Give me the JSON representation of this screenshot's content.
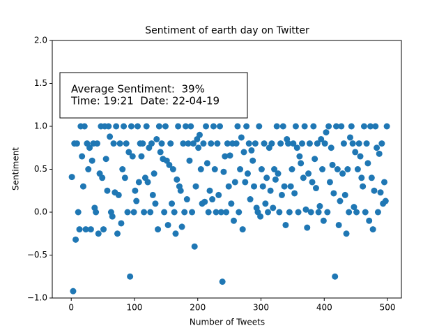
{
  "chart_data": {
    "type": "scatter",
    "title": "Sentiment of earth day on Twitter",
    "x_label": "Number of Tweets",
    "y_label": "Sentiment",
    "annotations": [
      "Average Sentiment:  39%",
      "Time: 19:21  Date: 22-04-19"
    ],
    "color": "#1f77b4",
    "xlim": [
      -30,
      522
    ],
    "ylim": [
      -1,
      2
    ],
    "xticks": [
      0,
      100,
      200,
      300,
      400,
      500
    ],
    "yticks": [
      {
        "value": -1,
        "label": "−1.0"
      },
      {
        "value": -0.5,
        "label": "−0.5"
      },
      {
        "value": 0,
        "label": "0.0"
      },
      {
        "value": 0.5,
        "label": "0.5"
      },
      {
        "value": 1,
        "label": "1.0"
      },
      {
        "value": 1.5,
        "label": "1.5"
      },
      {
        "value": 2,
        "label": "2.0"
      }
    ],
    "x": [
      1,
      3,
      5,
      7,
      9,
      11,
      13,
      15,
      17,
      19,
      21,
      23,
      25,
      27,
      29,
      31,
      33,
      35,
      37,
      39,
      41,
      43,
      45,
      47,
      49,
      51,
      53,
      55,
      57,
      59,
      61,
      63,
      65,
      67,
      69,
      71,
      73,
      75,
      77,
      79,
      81,
      83,
      85,
      87,
      89,
      91,
      93,
      95,
      97,
      99,
      101,
      103,
      105,
      107,
      109,
      111,
      113,
      115,
      117,
      119,
      121,
      123,
      125,
      127,
      129,
      131,
      133,
      135,
      137,
      139,
      141,
      143,
      145,
      147,
      149,
      151,
      153,
      155,
      157,
      159,
      161,
      163,
      165,
      167,
      169,
      171,
      173,
      175,
      177,
      179,
      181,
      183,
      185,
      187,
      189,
      191,
      193,
      195,
      197,
      199,
      201,
      203,
      205,
      207,
      209,
      211,
      213,
      215,
      217,
      219,
      221,
      223,
      225,
      227,
      229,
      231,
      233,
      235,
      237,
      239,
      241,
      243,
      245,
      247,
      249,
      251,
      253,
      255,
      257,
      259,
      261,
      263,
      265,
      267,
      269,
      271,
      273,
      275,
      277,
      279,
      281,
      283,
      285,
      287,
      289,
      291,
      293,
      295,
      297,
      299,
      301,
      303,
      305,
      307,
      309,
      311,
      313,
      315,
      317,
      319,
      321,
      323,
      325,
      327,
      329,
      331,
      333,
      335,
      337,
      339,
      341,
      343,
      345,
      347,
      349,
      351,
      353,
      355,
      357,
      359,
      361,
      363,
      365,
      367,
      369,
      371,
      373,
      375,
      377,
      379,
      381,
      383,
      385,
      387,
      389,
      391,
      393,
      395,
      397,
      399,
      401,
      403,
      405,
      407,
      409,
      411,
      413,
      415,
      417,
      419,
      421,
      423,
      425,
      427,
      429,
      431,
      433,
      435,
      437,
      439,
      441,
      443,
      445,
      447,
      449,
      451,
      453,
      455,
      457,
      459,
      461,
      463,
      465,
      467,
      469,
      471,
      473,
      475,
      477,
      479,
      481,
      483,
      485,
      487,
      489,
      491,
      493,
      495,
      497,
      499
    ],
    "values": [
      0.41,
      -0.92,
      0.8,
      -0.32,
      0.8,
      0,
      -0.2,
      1.0,
      0.65,
      0.3,
      1.0,
      -0.2,
      0.8,
      0.5,
      0.75,
      -0.2,
      0.6,
      0.8,
      0.05,
      0,
      0.8,
      -0.25,
      0.45,
      1.0,
      0.4,
      -0.2,
      1.0,
      0.62,
      0.25,
      1.0,
      0.88,
      0,
      -0.05,
      0.8,
      0.23,
      1.0,
      -0.25,
      0.2,
      0.8,
      -0.13,
      0.5,
      1.0,
      0.4,
      0.8,
      0,
      0.7,
      -0.75,
      1.0,
      0.65,
      0,
      0.25,
      0.13,
      1.0,
      0.35,
      0.8,
      0.65,
      0.8,
      0,
      0.4,
      1.0,
      0.35,
      0.75,
      0,
      0.8,
      0.2,
      0.45,
      0.1,
      0.85,
      -0.2,
      1.0,
      0.7,
      0.8,
      0.62,
      0,
      1.0,
      0.6,
      -0.15,
      0.55,
      0.8,
      0.1,
      0.5,
      0,
      -0.25,
      0.38,
      1.0,
      0.3,
      0.25,
      -0.17,
      0.8,
      0,
      1.0,
      0.15,
      0.8,
      0.6,
      1.0,
      0,
      0.8,
      -0.4,
      0.3,
      0.85,
      0.75,
      0.9,
      0.5,
      0.1,
      0.8,
      0.12,
      1.0,
      0.57,
      0,
      0.25,
      0.8,
      0.15,
      1.0,
      0.5,
      0,
      0.8,
      0.2,
      1.0,
      0,
      -0.81,
      0.47,
      0.65,
      0,
      0.8,
      0.3,
      0.66,
      0.1,
      0.8,
      -0.1,
      0.35,
      0.8,
      1.0,
      0,
      0.5,
      0.87,
      -0.2,
      0.7,
      0.35,
      1.0,
      0.45,
      0.8,
      0.15,
      0.72,
      0.6,
      0.3,
      0.8,
      0.05,
      0,
      1.0,
      -0.05,
      0.5,
      0.3,
      0.8,
      0.1,
      0.4,
      0,
      0.75,
      0.25,
      0.8,
      0.05,
      0.5,
      0.38,
      1.0,
      0.45,
      0,
      0.8,
      0.2,
      1.0,
      0.3,
      -0.15,
      0.85,
      0.8,
      0,
      0.3,
      0.5,
      0.8,
      0.22,
      1.0,
      0.75,
      0,
      0.65,
      0.57,
      0.8,
      0.4,
      1.0,
      0.03,
      -0.18,
      0.45,
      0.8,
      0,
      0.35,
      1.0,
      0.62,
      0.28,
      0.8,
      0,
      0.07,
      0.85,
      0.5,
      -0.1,
      0.8,
      0.93,
      0,
      1.0,
      0.35,
      0.75,
      0.55,
      0.22,
      -0.75,
      1.0,
      0.5,
      -0.15,
      0.13,
      1.0,
      0.45,
      0.8,
      0.2,
      -0.25,
      0.5,
      0,
      0.87,
      1.0,
      0.8,
      0.06,
      0.7,
      0,
      0.5,
      0.8,
      0.65,
      0.4,
      0.3,
      1.0,
      0,
      0.8,
      0.57,
      -0.1,
      1.0,
      0.4,
      -0.2,
      0.25,
      1.0,
      0.75,
      0,
      0.68,
      0.23,
      0.8,
      0.1,
      0.35,
      0.13,
      1.0
    ]
  }
}
